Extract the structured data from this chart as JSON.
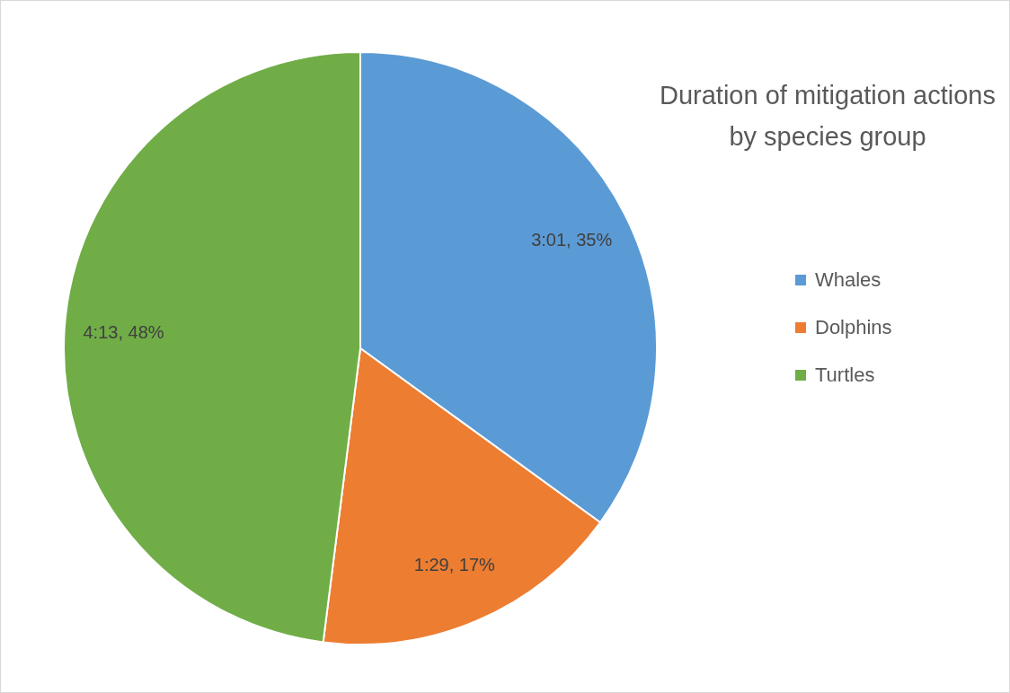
{
  "chart_data": {
    "type": "pie",
    "title": "Duration of mitigation actions by species group",
    "categories": [
      "Whales",
      "Dolphins",
      "Turtles"
    ],
    "values": [
      35,
      17,
      48
    ],
    "colors": [
      "#5b9bd5",
      "#ed7d31",
      "#70ad47"
    ],
    "value_labels": [
      "3:01, 35%",
      "1:29, 17%",
      "4:13, 48%"
    ],
    "legend": "right"
  }
}
